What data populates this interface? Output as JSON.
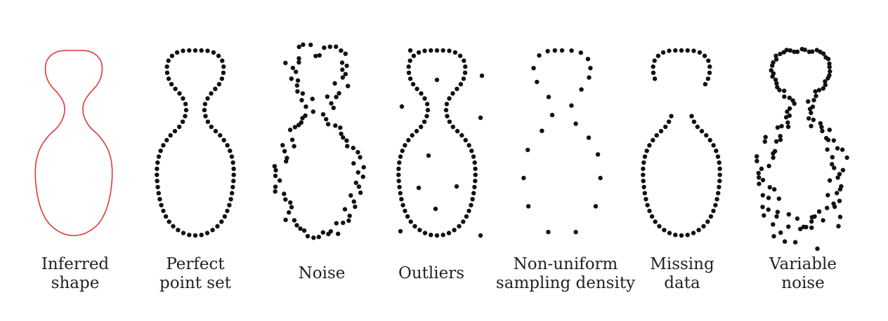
{
  "colors": {
    "inferred_outline": "#e0393b",
    "points": "#111111",
    "label_text": "#222222",
    "background": "#ffffff"
  },
  "panels": [
    {
      "id": "inferred",
      "label_lines": [
        "Inferred",
        "shape"
      ],
      "rendering": "outline"
    },
    {
      "id": "perfect",
      "label_lines": [
        "Perfect",
        "point set"
      ],
      "rendering": "uniform-points"
    },
    {
      "id": "noise",
      "label_lines": [
        "Noise"
      ],
      "rendering": "jittered-points"
    },
    {
      "id": "outliers",
      "label_lines": [
        "Outliers"
      ],
      "rendering": "points-with-outliers"
    },
    {
      "id": "nonuniform",
      "label_lines": [
        "Non-uniform",
        "sampling density"
      ],
      "rendering": "sparse-points"
    },
    {
      "id": "missing",
      "label_lines": [
        "Missing",
        "data"
      ],
      "rendering": "points-with-gaps"
    },
    {
      "id": "variable",
      "label_lines": [
        "Variable",
        "noise"
      ],
      "rendering": "variable-jitter-points"
    }
  ]
}
